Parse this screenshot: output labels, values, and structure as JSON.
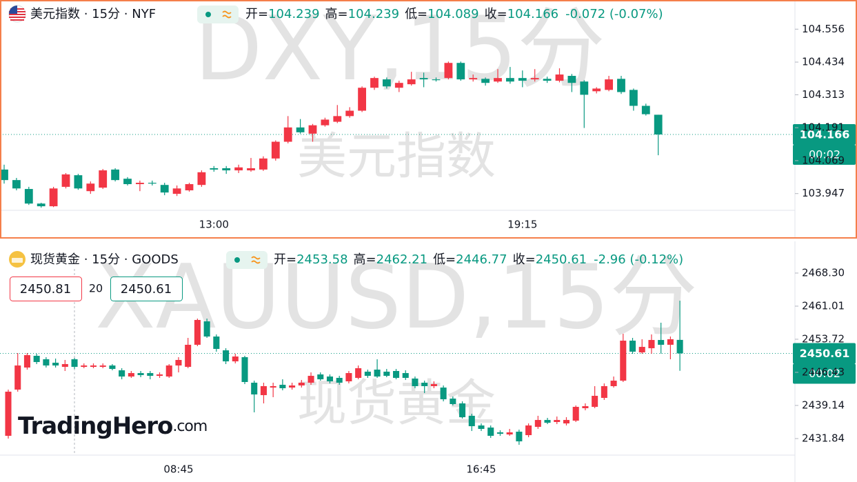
{
  "chart_data": [
    {
      "type": "candlestick",
      "title": "美元指数 · 15分 · NYF",
      "watermark": "DXY,15分",
      "watermark_subtitle": "美元指数",
      "ohlc_labels": [
        "开=",
        "高=",
        "低=",
        "收="
      ],
      "change_label": "-0.072 (-0.07%)",
      "countdown": "00:02",
      "categories": [
        null,
        null,
        null,
        null,
        null,
        null,
        null,
        null,
        null,
        null,
        null,
        null,
        null,
        null,
        null,
        null,
        null,
        "13:00",
        null,
        null,
        null,
        null,
        null,
        null,
        null,
        null,
        null,
        null,
        null,
        null,
        null,
        null,
        null,
        null,
        null,
        null,
        null,
        null,
        null,
        null,
        null,
        null,
        "19:15",
        null,
        null,
        null,
        null,
        null,
        null,
        null,
        null,
        null,
        null,
        null
      ],
      "open": [
        104.036,
        103.997,
        103.964,
        103.91,
        103.9,
        103.972,
        104.015,
        103.956,
        103.969,
        104.036,
        104.002,
        103.982,
        103.987,
        103.979,
        103.946,
        103.959,
        103.979,
        104.041,
        104.041,
        104.033,
        104.033,
        104.036,
        104.077,
        104.139,
        104.192,
        104.169,
        104.2,
        104.213,
        104.234,
        104.254,
        104.339,
        104.37,
        104.339,
        104.352,
        104.375,
        104.37,
        104.375,
        104.431,
        104.37,
        104.372,
        104.362,
        104.375,
        104.375,
        104.37,
        104.372,
        104.365,
        104.383,
        104.362,
        104.326,
        104.331,
        104.372,
        104.331,
        104.272,
        104.239
      ],
      "high": [
        104.054,
        104.005,
        103.972,
        103.913,
        103.972,
        104.023,
        104.02,
        103.992,
        104.038,
        104.041,
        104.008,
        103.995,
        103.995,
        103.987,
        103.977,
        103.987,
        104.033,
        104.049,
        104.049,
        104.054,
        104.079,
        104.085,
        104.144,
        104.234,
        104.223,
        104.205,
        104.228,
        104.275,
        104.267,
        104.344,
        104.38,
        104.377,
        104.365,
        104.398,
        104.395,
        104.377,
        104.436,
        104.436,
        104.388,
        104.377,
        104.408,
        104.416,
        104.403,
        104.408,
        104.38,
        104.411,
        104.39,
        104.367,
        104.341,
        104.383,
        104.383,
        104.336,
        104.28,
        104.239
      ],
      "low": [
        103.984,
        103.959,
        103.905,
        103.895,
        103.897,
        103.966,
        103.961,
        103.946,
        103.964,
        103.992,
        103.977,
        103.956,
        103.977,
        103.941,
        103.938,
        103.954,
        103.972,
        104.028,
        104.02,
        104.023,
        104.028,
        104.031,
        104.069,
        104.133,
        104.169,
        104.139,
        104.195,
        104.208,
        104.228,
        104.249,
        104.331,
        104.336,
        104.323,
        104.347,
        104.341,
        104.362,
        104.37,
        104.365,
        104.362,
        104.347,
        104.357,
        104.354,
        104.341,
        104.362,
        104.357,
        104.359,
        104.323,
        104.19,
        104.318,
        104.326,
        104.316,
        104.254,
        104.236,
        104.089
      ],
      "close": [
        103.997,
        103.966,
        103.91,
        103.9,
        103.966,
        104.018,
        103.966,
        103.984,
        104.033,
        103.997,
        103.982,
        103.987,
        103.984,
        103.951,
        103.966,
        103.982,
        104.026,
        104.036,
        104.033,
        104.044,
        104.041,
        104.077,
        104.139,
        104.192,
        104.174,
        104.2,
        104.221,
        104.234,
        104.254,
        104.339,
        104.375,
        104.344,
        104.357,
        104.37,
        104.37,
        104.367,
        104.431,
        104.37,
        104.375,
        104.357,
        104.375,
        104.362,
        104.365,
        104.375,
        104.365,
        104.388,
        104.357,
        104.313,
        104.336,
        104.37,
        104.323,
        104.272,
        104.241,
        104.166
      ],
      "up_color": "#f23645",
      "down_color": "#089981",
      "ylim": [
        103.885,
        104.664
      ],
      "yticks": [
        103.947,
        104.069,
        104.191,
        104.313,
        104.434,
        104.556
      ],
      "grid": false
    },
    {
      "type": "candlestick",
      "title": "现货黄金 · 15分 · GOODS",
      "watermark": "XAUUSD,15分",
      "watermark_subtitle": "现货黄金",
      "ohlc_labels": [
        "开=",
        "高=",
        "低=",
        "收="
      ],
      "change_label": "-2.96 (-0.12%)",
      "countdown": "00:02",
      "quote": {
        "sell": 2450.81,
        "spread": 20,
        "buy": 2450.61
      },
      "categories": [
        null,
        null,
        null,
        null,
        null,
        null,
        null,
        null,
        null,
        null,
        null,
        null,
        null,
        null,
        null,
        null,
        null,
        null,
        "08:45",
        null,
        null,
        null,
        null,
        null,
        null,
        null,
        null,
        null,
        null,
        null,
        null,
        null,
        null,
        null,
        null,
        null,
        null,
        null,
        null,
        null,
        null,
        null,
        null,
        null,
        null,
        null,
        null,
        null,
        null,
        null,
        "16:45",
        null,
        null,
        null,
        null,
        null,
        null,
        null,
        null,
        null,
        null,
        null,
        null,
        null,
        null,
        null,
        null,
        null,
        null,
        null,
        null,
        null
      ],
      "open": [
        2432.45,
        2442.63,
        2447.49,
        2450.07,
        2449.31,
        2448.55,
        2447.64,
        2449.31,
        2447.64,
        2447.64,
        2447.64,
        2447.94,
        2446.88,
        2445.51,
        2446.27,
        2446.27,
        2445.66,
        2445.51,
        2447.94,
        2447.64,
        2452.5,
        2457.66,
        2454.32,
        2451.28,
        2448.85,
        2449.77,
        2444.15,
        2441.41,
        2443.08,
        2443.69,
        2443.08,
        2443.54,
        2444.15,
        2445.97,
        2445.51,
        2445.21,
        2444.45,
        2445.21,
        2446.58,
        2447.03,
        2446.58,
        2446.73,
        2446.27,
        2445.06,
        2444.15,
        2443.39,
        2443.08,
        2440.65,
        2439.59,
        2436.86,
        2434.73,
        2434.27,
        2433.21,
        2432.75,
        2433.36,
        2432.6,
        2434.42,
        2435.94,
        2435.49,
        2435.18,
        2435.79,
        2438.53,
        2438.83,
        2440.8,
        2443.39,
        2444.6,
        2453.41,
        2450.83,
        2451.74,
        2453.56,
        2452.5,
        2453.58
      ],
      "high": [
        2442.63,
        2450.68,
        2450.68,
        2450.53,
        2449.77,
        2449.46,
        2449.16,
        2449.61,
        2448.4,
        2448.4,
        2448.4,
        2448.25,
        2447.34,
        2446.73,
        2446.73,
        2446.73,
        2446.42,
        2448.25,
        2449.77,
        2454.02,
        2458.27,
        2458.27,
        2454.78,
        2451.74,
        2450.53,
        2450.07,
        2444.6,
        2444.15,
        2444.15,
        2444.9,
        2444.15,
        2444.75,
        2446.42,
        2446.42,
        2445.97,
        2445.66,
        2446.73,
        2447.94,
        2447.03,
        2449.31,
        2447.18,
        2447.18,
        2446.88,
        2445.51,
        2444.6,
        2444.45,
        2443.54,
        2441.11,
        2440.04,
        2437.31,
        2435.18,
        2434.73,
        2433.66,
        2433.97,
        2433.81,
        2435.18,
        2436.86,
        2436.4,
        2436.7,
        2436.55,
        2439.14,
        2439.59,
        2443.39,
        2443.99,
        2445.51,
        2454.93,
        2454.02,
        2453.72,
        2454.78,
        2457.36,
        2454.32,
        2462.21
      ],
      "low": [
        2431.84,
        2442.17,
        2447.03,
        2448.25,
        2447.49,
        2447.49,
        2446.73,
        2447.18,
        2447.34,
        2447.34,
        2447.34,
        2446.88,
        2444.9,
        2445.21,
        2445.36,
        2444.9,
        2445.21,
        2445.21,
        2446.42,
        2447.34,
        2452.2,
        2454.02,
        2450.98,
        2448.25,
        2448.4,
        2443.84,
        2437.62,
        2439.59,
        2440.96,
        2442.47,
        2442.63,
        2443.08,
        2443.69,
        2444.6,
        2443.99,
        2443.69,
        2443.99,
        2444.9,
        2445.21,
        2445.21,
        2445.36,
        2444.9,
        2444.75,
        2442.93,
        2441.87,
        2442.93,
        2440.04,
        2439.14,
        2436.25,
        2433.51,
        2433.51,
        2431.99,
        2432.45,
        2432.45,
        2430.47,
        2432.14,
        2433.97,
        2435.03,
        2435.03,
        2434.73,
        2435.49,
        2438.07,
        2438.53,
        2440.35,
        2443.08,
        2444.3,
        2450.53,
        2450.53,
        2450.53,
        2450.53,
        2449.31,
        2446.77
      ],
      "close": [
        2442.17,
        2447.94,
        2450.22,
        2448.7,
        2447.94,
        2447.94,
        2448.25,
        2447.64,
        2447.94,
        2447.94,
        2447.94,
        2447.18,
        2445.51,
        2446.27,
        2445.82,
        2445.66,
        2445.97,
        2447.94,
        2449.16,
        2452.5,
        2457.97,
        2454.32,
        2451.59,
        2448.85,
        2449.92,
        2444.3,
        2441.56,
        2443.39,
        2443.39,
        2442.93,
        2443.54,
        2444.15,
        2445.66,
        2444.9,
        2444.45,
        2444.15,
        2446.27,
        2447.34,
        2445.66,
        2445.51,
        2445.66,
        2445.21,
        2445.21,
        2443.39,
        2443.39,
        2443.84,
        2440.5,
        2439.44,
        2436.55,
        2434.57,
        2433.97,
        2432.45,
        2432.9,
        2433.21,
        2431.23,
        2434.73,
        2435.94,
        2435.33,
        2435.94,
        2435.94,
        2438.83,
        2438.98,
        2441.26,
        2443.39,
        2444.6,
        2453.41,
        2450.98,
        2452.04,
        2453.56,
        2452.5,
        2453.72,
        2450.61
      ],
      "up_color": "#f23645",
      "down_color": "#089981",
      "ylim": [
        2428.2,
        2474.98
      ],
      "yticks": [
        2431.84,
        2439.14,
        2446.43,
        2453.72,
        2461.01,
        {
          "value": 2468.3,
          "label": "2468.30"
        }
      ],
      "grid": false
    }
  ],
  "logo": {
    "name": "TradingHero",
    "domain": ".com"
  }
}
